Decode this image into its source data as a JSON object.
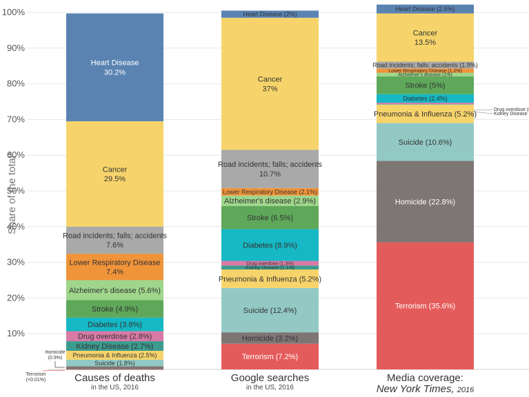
{
  "colors": {
    "Heart Disease": "#5a83b2",
    "Cancer": "#f7d46b",
    "Road incidents; falls; accidents": "#a9a9a9",
    "Lower Respiratory Disease": "#f0943a",
    "Alzheimer's disease": "#9fd68b",
    "Stroke": "#5fa85a",
    "Diabetes": "#15b8c4",
    "Drug overdose": "#d97aa6",
    "Kidney Disease": "#3c9b8f",
    "Pneumonia & Influenza": "#f7d46b",
    "Suicide": "#93c9c5",
    "Homicide": "#7e7674",
    "Terrorism": "#e45b5b"
  },
  "chart_data": {
    "type": "bar",
    "stacked": true,
    "ylabel": "Share of the total*",
    "ylim": [
      0,
      100
    ],
    "yticks": [
      "10%",
      "20%",
      "30%",
      "40%",
      "50%",
      "60%",
      "70%",
      "80%",
      "90%",
      "100%"
    ],
    "columns": [
      {
        "title": "Causes of deaths",
        "subtitle": "in the US, 2016",
        "segments": [
          {
            "name": "Terrorism",
            "value": 0.01,
            "label": ""
          },
          {
            "name": "Homicide",
            "value": 0.9,
            "label": ""
          },
          {
            "name": "Suicide",
            "value": 1.8,
            "label": "Suicide (1.8%)"
          },
          {
            "name": "Pneumonia & Influenza",
            "value": 2.5,
            "label": "Pneumonia & Influenza (2.5%)"
          },
          {
            "name": "Kidney Disease",
            "value": 2.7,
            "label": "Kidney Disease (2.7%)"
          },
          {
            "name": "Drug overdose",
            "value": 2.8,
            "label": "Drug overdose (2.8%)"
          },
          {
            "name": "Diabetes",
            "value": 3.8,
            "label": "Diabetes (3.8%)"
          },
          {
            "name": "Stroke",
            "value": 4.9,
            "label": "Stroke (4.9%)"
          },
          {
            "name": "Alzheimer's disease",
            "value": 5.6,
            "label": "Alzheimer's disease (5.6%)"
          },
          {
            "name": "Lower Respiratory Disease",
            "value": 7.4,
            "label": "Lower Respiratory Disease\n7.4%"
          },
          {
            "name": "Road incidents; falls; accidents",
            "value": 7.6,
            "label": "Road incidents; falls; accidents\n7.6%"
          },
          {
            "name": "Cancer",
            "value": 29.5,
            "label": "Cancer\n29.5%"
          },
          {
            "name": "Heart Disease",
            "value": 30.2,
            "label": "Heart Disease\n30.2%"
          }
        ]
      },
      {
        "title": "Google searches",
        "subtitle": "in the US, 2016",
        "segments": [
          {
            "name": "Terrorism",
            "value": 7.2,
            "label": "Terrorism (7.2%)"
          },
          {
            "name": "Homicide",
            "value": 3.2,
            "label": "Homicide (3.2%)"
          },
          {
            "name": "Suicide",
            "value": 12.4,
            "label": "Suicide (12.4%)"
          },
          {
            "name": "Pneumonia & Influenza",
            "value": 5.2,
            "label": "Pneumonia & Influenza (5.2%)"
          },
          {
            "name": "Kidney Disease",
            "value": 1.1,
            "label": "Kidney Disease (1.1%)"
          },
          {
            "name": "Drug overdose",
            "value": 1.3,
            "label": "Drug overdose (1.3%)"
          },
          {
            "name": "Diabetes",
            "value": 8.9,
            "label": "Diabetes (8.9%)"
          },
          {
            "name": "Stroke",
            "value": 6.5,
            "label": "Stroke (6.5%)"
          },
          {
            "name": "Alzheimer's disease",
            "value": 2.9,
            "label": "Alzheimer's disease (2.9%)"
          },
          {
            "name": "Lower Respiratory Disease",
            "value": 2.1,
            "label": "Lower Respiratory Disease (2.1%)"
          },
          {
            "name": "Road incidents; falls; accidents",
            "value": 10.7,
            "label": "Road incidents; falls; accidents\n10.7%"
          },
          {
            "name": "Cancer",
            "value": 37,
            "label": "Cancer\n37%"
          },
          {
            "name": "Heart Disease",
            "value": 2,
            "label": "Heart Disease (2%)"
          }
        ]
      },
      {
        "title": "Media coverage:",
        "subtitle_italic": "New York Times,",
        "subtitle_year": "2016",
        "segments": [
          {
            "name": "Terrorism",
            "value": 35.6,
            "label": "Terrorism (35.6%)"
          },
          {
            "name": "Homicide",
            "value": 22.8,
            "label": "Homicide (22.8%)"
          },
          {
            "name": "Suicide",
            "value": 10.6,
            "label": "Suicide (10.6%)"
          },
          {
            "name": "Pneumonia & Influenza",
            "value": 5.2,
            "label": "Pneumonia & Influenza (5.2%)"
          },
          {
            "name": "Kidney Disease",
            "value": 0.1,
            "label": ""
          },
          {
            "name": "Drug overdose",
            "value": 0.4,
            "label": ""
          },
          {
            "name": "Diabetes",
            "value": 2.4,
            "label": "Diabetes (2.4%)"
          },
          {
            "name": "Stroke",
            "value": 5,
            "label": "Stroke (5%)"
          },
          {
            "name": "Alzheimer's disease",
            "value": 1,
            "label": "Alzheimer's disease (1%)"
          },
          {
            "name": "Lower Respiratory Disease",
            "value": 1.2,
            "label": "Lower Respiratory Disease (1.2%)"
          },
          {
            "name": "Road incidents; falls; accidents",
            "value": 1.9,
            "label": "Road incidents; falls; accidents (1.9%)"
          },
          {
            "name": "Cancer",
            "value": 13.5,
            "label": "Cancer\n13.5%"
          },
          {
            "name": "Heart Disease",
            "value": 2.5,
            "label": "Heart Disease (2.5%)"
          }
        ]
      }
    ],
    "annotations": {
      "col1_homicide": "Homicide\n(0.9%)",
      "col1_terrorism": "Terrorism\n(<0.01%)",
      "col3_drug": "Drug overdose (0.4%)",
      "col3_kidney": "Kidney Disease (0.1%)"
    }
  }
}
